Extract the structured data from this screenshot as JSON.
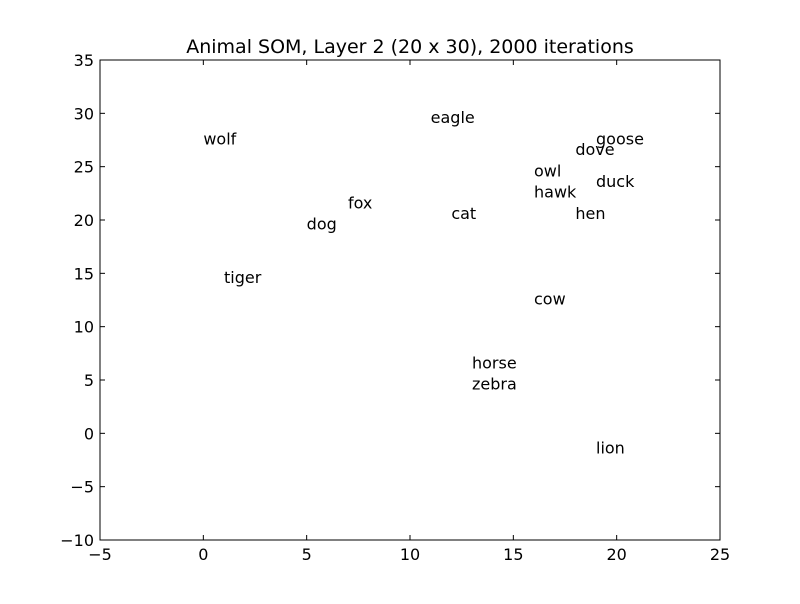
{
  "chart_data": {
    "type": "scatter",
    "title": "Animal SOM, Layer 2 (20 x 30), 2000 iterations",
    "xlabel": "",
    "ylabel": "",
    "xlim": [
      -5,
      25
    ],
    "ylim": [
      -10,
      35
    ],
    "xticks": [
      -5,
      0,
      5,
      10,
      15,
      20,
      25
    ],
    "yticks": [
      -10,
      -5,
      0,
      5,
      10,
      15,
      20,
      25,
      30,
      35
    ],
    "grid": false,
    "points": [
      {
        "label": "eagle",
        "x": 11,
        "y": 29
      },
      {
        "label": "wolf",
        "x": 0,
        "y": 27
      },
      {
        "label": "goose",
        "x": 19,
        "y": 27
      },
      {
        "label": "dove",
        "x": 18,
        "y": 26
      },
      {
        "label": "owl",
        "x": 16,
        "y": 24
      },
      {
        "label": "duck",
        "x": 19,
        "y": 23
      },
      {
        "label": "hawk",
        "x": 16,
        "y": 22
      },
      {
        "label": "fox",
        "x": 7,
        "y": 21
      },
      {
        "label": "cat",
        "x": 12,
        "y": 20
      },
      {
        "label": "hen",
        "x": 18,
        "y": 20
      },
      {
        "label": "dog",
        "x": 5,
        "y": 19
      },
      {
        "label": "tiger",
        "x": 1,
        "y": 14
      },
      {
        "label": "cow",
        "x": 16,
        "y": 12
      },
      {
        "label": "horse",
        "x": 13,
        "y": 6
      },
      {
        "label": "zebra",
        "x": 13,
        "y": 4
      },
      {
        "label": "lion",
        "x": 19,
        "y": -2
      }
    ]
  }
}
